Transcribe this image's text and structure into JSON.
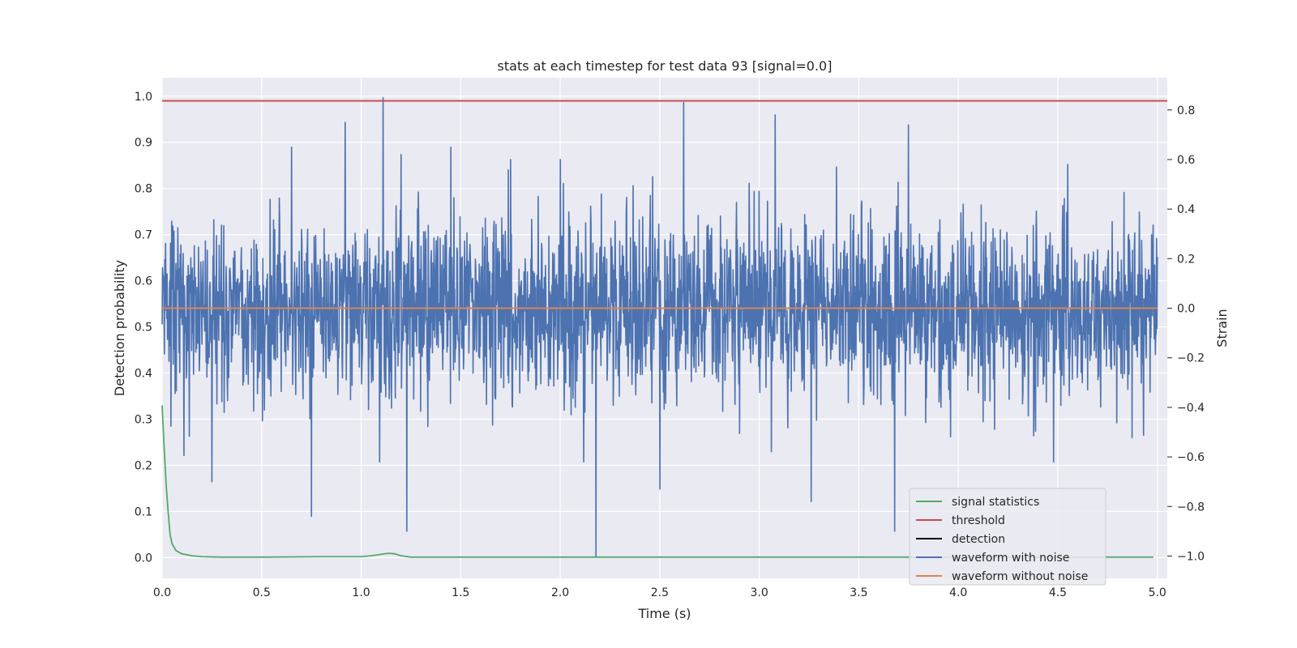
{
  "chart_data": {
    "type": "line",
    "title": "stats at each timestep for test data 93 [signal=0.0]",
    "xlabel": "Time (s)",
    "ylabel": "Detection probability",
    "y2label": "Strain",
    "xlim": [
      0.0,
      5.05
    ],
    "ylim": [
      -0.045,
      1.04
    ],
    "y2lim": [
      -1.09,
      0.93
    ],
    "xticks": [
      "0.0",
      "0.5",
      "1.0",
      "1.5",
      "2.0",
      "2.5",
      "3.0",
      "3.5",
      "4.0",
      "4.5",
      "5.0"
    ],
    "yticks": [
      "0.0",
      "0.1",
      "0.2",
      "0.3",
      "0.4",
      "0.5",
      "0.6",
      "0.7",
      "0.8",
      "0.9",
      "1.0"
    ],
    "y2ticks": [
      "−1.0",
      "−0.8",
      "−0.6",
      "−0.4",
      "−0.2",
      "0.0",
      "0.2",
      "0.4",
      "0.6",
      "0.8"
    ],
    "grid": true,
    "legend_position": "lower-right",
    "colors": {
      "signal_statistics": "#55a868",
      "threshold": "#c44e52",
      "detection": "#000000",
      "waveform_with_noise": "#4c72b0",
      "waveform_without_noise": "#dd8452",
      "plot_background": "#eaeaf2",
      "grid": "#ffffff"
    },
    "legend": [
      {
        "label": "signal statistics",
        "color": "#55a868"
      },
      {
        "label": "threshold",
        "color": "#c44e52"
      },
      {
        "label": "detection",
        "color": "#000000"
      },
      {
        "label": "waveform with noise",
        "color": "#4c72b0"
      },
      {
        "label": "waveform without noise",
        "color": "#dd8452"
      }
    ],
    "series": [
      {
        "name": "signal statistics",
        "axis": "left",
        "x": [
          0.0,
          0.01,
          0.02,
          0.03,
          0.04,
          0.05,
          0.07,
          0.1,
          0.15,
          0.2,
          0.3,
          0.5,
          0.8,
          1.0,
          1.05,
          1.1,
          1.13,
          1.15,
          1.17,
          1.2,
          1.25,
          1.3,
          1.5,
          2.0,
          3.0,
          4.0,
          4.98
        ],
        "y": [
          0.33,
          0.24,
          0.16,
          0.1,
          0.05,
          0.03,
          0.015,
          0.008,
          0.004,
          0.002,
          0.001,
          0.001,
          0.002,
          0.002,
          0.004,
          0.007,
          0.009,
          0.009,
          0.008,
          0.004,
          0.001,
          0.001,
          0.001,
          0.001,
          0.001,
          0.001,
          0.001
        ]
      },
      {
        "name": "threshold",
        "axis": "left",
        "x": [
          0.0,
          5.05
        ],
        "y": [
          0.99,
          0.99
        ]
      },
      {
        "name": "waveform with noise",
        "axis": "right",
        "x_range": [
          0.0,
          5.0
        ],
        "typical_amplitude": 0.18,
        "peaks": [
          {
            "x": 0.25,
            "y": -0.7
          },
          {
            "x": 0.65,
            "y": 0.65
          },
          {
            "x": 0.75,
            "y": -0.84
          },
          {
            "x": 0.92,
            "y": 0.75
          },
          {
            "x": 1.11,
            "y": 0.85
          },
          {
            "x": 1.23,
            "y": -0.9
          },
          {
            "x": 1.45,
            "y": 0.65
          },
          {
            "x": 1.75,
            "y": 0.6
          },
          {
            "x": 2.0,
            "y": 0.6
          },
          {
            "x": 2.18,
            "y": -1.0
          },
          {
            "x": 2.5,
            "y": -0.73
          },
          {
            "x": 2.62,
            "y": 0.83
          },
          {
            "x": 3.08,
            "y": 0.78
          },
          {
            "x": 3.26,
            "y": -0.78
          },
          {
            "x": 3.68,
            "y": -0.9
          },
          {
            "x": 3.75,
            "y": 0.74
          },
          {
            "x": 4.55,
            "y": 0.58
          }
        ]
      },
      {
        "name": "waveform without noise",
        "axis": "right",
        "x": [
          0.0,
          5.0
        ],
        "y": [
          0.0,
          0.0
        ]
      }
    ]
  }
}
